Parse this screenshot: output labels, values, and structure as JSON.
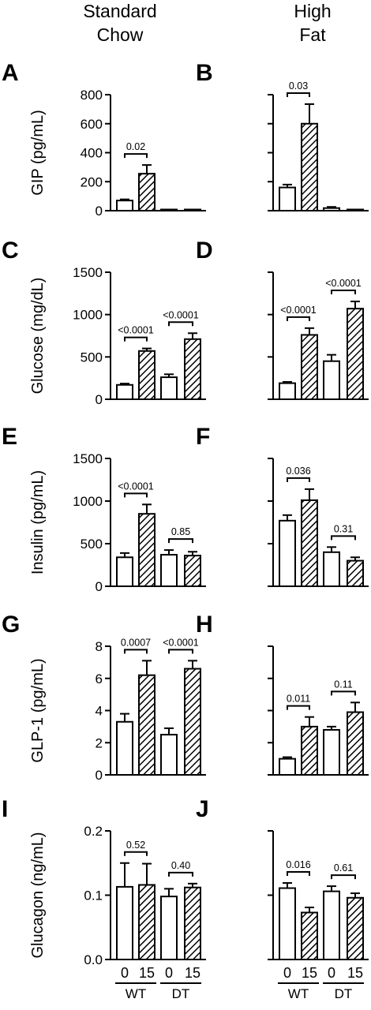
{
  "column_headers": {
    "left": [
      "Standard",
      "Chow"
    ],
    "right": [
      "High",
      "Fat"
    ]
  },
  "colors": {
    "ink": "#000000",
    "open_bar": "#ffffff"
  },
  "chart_data": [
    {
      "type": "bar",
      "panel": "A",
      "ylabel": "GIP (pg/mL)",
      "ylim": [
        0,
        800
      ],
      "yticks": [
        0,
        200,
        400,
        600,
        800
      ],
      "tick_labels": [
        "0",
        "200",
        "400",
        "600",
        "800"
      ],
      "categories": [
        "WT 0",
        "WT 15",
        "DT 0",
        "DT 15"
      ],
      "values": [
        70,
        255,
        3,
        5
      ],
      "errors": [
        8,
        60,
        0,
        0
      ],
      "hatched": [
        false,
        true,
        false,
        true
      ],
      "annotations": [
        {
          "pair": [
            0,
            1
          ],
          "label": "0.02"
        }
      ]
    },
    {
      "type": "bar",
      "panel": "B",
      "ylabel": "",
      "ylim": [
        0,
        800
      ],
      "yticks": [
        0,
        200,
        400,
        600,
        800
      ],
      "tick_labels": [],
      "categories": [
        "WT 0",
        "WT 15",
        "DT 0",
        "DT 15"
      ],
      "values": [
        160,
        600,
        18,
        5
      ],
      "errors": [
        20,
        135,
        8,
        0
      ],
      "hatched": [
        false,
        true,
        false,
        true
      ],
      "annotations": [
        {
          "pair": [
            0,
            1
          ],
          "label": "0.03"
        }
      ]
    },
    {
      "type": "bar",
      "panel": "C",
      "ylabel": "Glucose (mg/dL)",
      "ylim": [
        0,
        1500
      ],
      "yticks": [
        0,
        500,
        1000,
        1500
      ],
      "tick_labels": [
        "0",
        "500",
        "1000",
        "1500"
      ],
      "categories": [
        "WT 0",
        "WT 15",
        "DT 0",
        "DT 15"
      ],
      "values": [
        170,
        570,
        260,
        710
      ],
      "errors": [
        15,
        30,
        35,
        70
      ],
      "hatched": [
        false,
        true,
        false,
        true
      ],
      "annotations": [
        {
          "pair": [
            0,
            1
          ],
          "label": "<0.0001"
        },
        {
          "pair": [
            2,
            3
          ],
          "label": "<0.0001"
        }
      ]
    },
    {
      "type": "bar",
      "panel": "D",
      "ylabel": "",
      "ylim": [
        0,
        1500
      ],
      "yticks": [
        0,
        500,
        1000,
        1500
      ],
      "tick_labels": [],
      "categories": [
        "WT 0",
        "WT 15",
        "DT 0",
        "DT 15"
      ],
      "values": [
        190,
        760,
        450,
        1070
      ],
      "errors": [
        15,
        80,
        75,
        85
      ],
      "hatched": [
        false,
        true,
        false,
        true
      ],
      "annotations": [
        {
          "pair": [
            0,
            1
          ],
          "label": "<0.0001"
        },
        {
          "pair": [
            2,
            3
          ],
          "label": "<0.0001"
        }
      ]
    },
    {
      "type": "bar",
      "panel": "E",
      "ylabel": "Insulin (pg/mL)",
      "ylim": [
        0,
        1500
      ],
      "yticks": [
        0,
        500,
        1000,
        1500
      ],
      "tick_labels": [
        "0",
        "500",
        "1000",
        "1500"
      ],
      "categories": [
        "WT 0",
        "WT 15",
        "DT 0",
        "DT 15"
      ],
      "values": [
        340,
        850,
        370,
        360
      ],
      "errors": [
        50,
        110,
        55,
        45
      ],
      "hatched": [
        false,
        true,
        false,
        true
      ],
      "annotations": [
        {
          "pair": [
            0,
            1
          ],
          "label": "<0.0001"
        },
        {
          "pair": [
            2,
            3
          ],
          "label": "0.85"
        }
      ]
    },
    {
      "type": "bar",
      "panel": "F",
      "ylabel": "",
      "ylim": [
        0,
        1500
      ],
      "yticks": [
        0,
        500,
        1000,
        1500
      ],
      "tick_labels": [],
      "categories": [
        "WT 0",
        "WT 15",
        "DT 0",
        "DT 15"
      ],
      "values": [
        770,
        1010,
        400,
        300
      ],
      "errors": [
        65,
        130,
        60,
        40
      ],
      "hatched": [
        false,
        true,
        false,
        true
      ],
      "annotations": [
        {
          "pair": [
            0,
            1
          ],
          "label": "0.036"
        },
        {
          "pair": [
            2,
            3
          ],
          "label": "0.31"
        }
      ]
    },
    {
      "type": "bar",
      "panel": "G",
      "ylabel": "GLP-1 (pg/mL)",
      "ylim": [
        0,
        8
      ],
      "yticks": [
        0,
        2,
        4,
        6,
        8
      ],
      "tick_labels": [
        "0",
        "2",
        "4",
        "6",
        "8"
      ],
      "categories": [
        "WT 0",
        "WT 15",
        "DT 0",
        "DT 15"
      ],
      "values": [
        3.3,
        6.2,
        2.5,
        6.6
      ],
      "errors": [
        0.5,
        0.9,
        0.4,
        0.5
      ],
      "hatched": [
        false,
        true,
        false,
        true
      ],
      "annotations": [
        {
          "pair": [
            0,
            1
          ],
          "label": "0.0007"
        },
        {
          "pair": [
            2,
            3
          ],
          "label": "<0.0001"
        }
      ]
    },
    {
      "type": "bar",
      "panel": "H",
      "ylabel": "",
      "ylim": [
        0,
        8
      ],
      "yticks": [
        0,
        2,
        4,
        6,
        8
      ],
      "tick_labels": [],
      "categories": [
        "WT 0",
        "WT 15",
        "DT 0",
        "DT 15"
      ],
      "values": [
        1.0,
        3.0,
        2.8,
        3.9
      ],
      "errors": [
        0.1,
        0.6,
        0.2,
        0.6
      ],
      "hatched": [
        false,
        true,
        false,
        true
      ],
      "annotations": [
        {
          "pair": [
            0,
            1
          ],
          "label": "0.011"
        },
        {
          "pair": [
            2,
            3
          ],
          "label": "0.11"
        }
      ]
    },
    {
      "type": "bar",
      "panel": "I",
      "ylabel": "Glucagon (ng/mL)",
      "ylim": [
        0,
        0.2
      ],
      "yticks": [
        0,
        0.1,
        0.2
      ],
      "tick_labels": [
        "0.0",
        "0.1",
        "0.2"
      ],
      "categories": [
        "WT 0",
        "WT 15",
        "DT 0",
        "DT 15"
      ],
      "values": [
        0.113,
        0.116,
        0.098,
        0.112
      ],
      "errors": [
        0.037,
        0.033,
        0.012,
        0.006
      ],
      "hatched": [
        false,
        true,
        false,
        true
      ],
      "annotations": [
        {
          "pair": [
            0,
            1
          ],
          "label": "0.52"
        },
        {
          "pair": [
            2,
            3
          ],
          "label": "0.40"
        }
      ]
    },
    {
      "type": "bar",
      "panel": "J",
      "ylabel": "",
      "ylim": [
        0,
        0.2
      ],
      "yticks": [
        0,
        0.1,
        0.2
      ],
      "tick_labels": [],
      "categories": [
        "WT 0",
        "WT 15",
        "DT 0",
        "DT 15"
      ],
      "values": [
        0.111,
        0.073,
        0.106,
        0.096
      ],
      "errors": [
        0.008,
        0.008,
        0.008,
        0.007
      ],
      "hatched": [
        false,
        true,
        false,
        true
      ],
      "annotations": [
        {
          "pair": [
            0,
            1
          ],
          "label": "0.016"
        },
        {
          "pair": [
            2,
            3
          ],
          "label": "0.61"
        }
      ]
    }
  ],
  "x_axis": {
    "bar_labels": [
      "0",
      "15",
      "0",
      "15"
    ],
    "group_labels": [
      "WT",
      "DT"
    ]
  }
}
